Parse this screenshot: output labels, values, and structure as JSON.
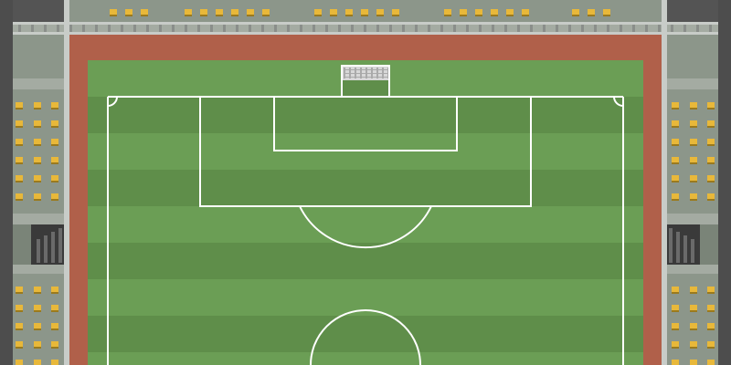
{
  "scene": {
    "type": "top-down pixel-art football stadium",
    "colors": {
      "outer_wall": "#4d4d4d",
      "stand_floor": "#8c968a",
      "stand_floor_dark": "#7a8478",
      "railing": "#c8ccc8",
      "railing_post": "#8a8e8a",
      "seat": "#e8b83a",
      "seat_shadow": "#9a7a1e",
      "track": "#b0604a",
      "grass_light": "#6b9e55",
      "grass_dark": "#5f8e4a",
      "line": "#ffffff",
      "goal_net": "#d8d8d8",
      "tunnel": "#3a3a3a",
      "tunnel_step": "#6a6a6a"
    },
    "icons": {
      "seat": "seat-icon",
      "goal": "goal-net-icon",
      "tunnel": "player-tunnel-icon"
    }
  }
}
